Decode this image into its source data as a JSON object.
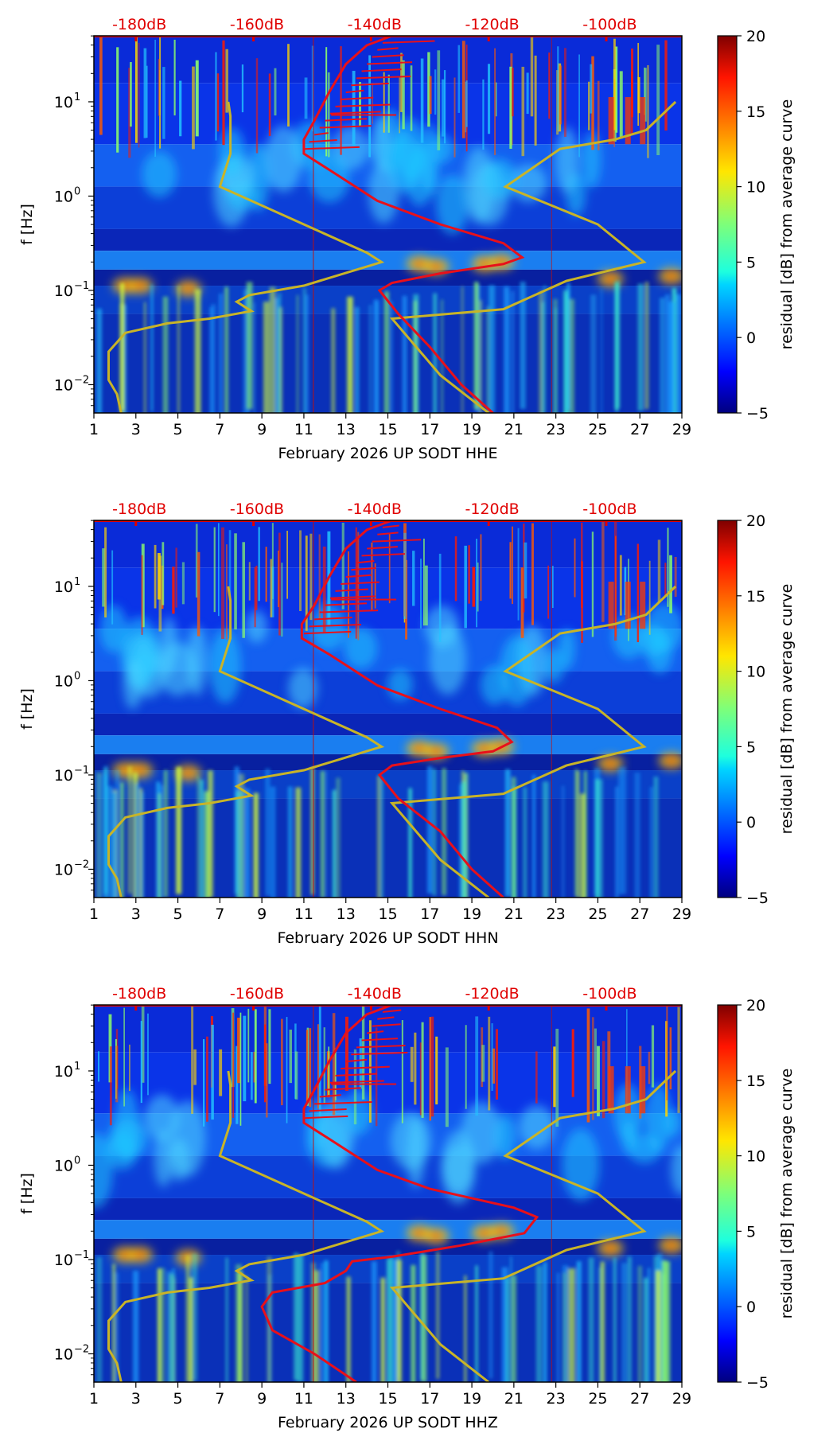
{
  "figure": {
    "description_type": "spectrogram residual panels",
    "colormap": "jet"
  },
  "chart_data": [
    {
      "type": "heatmap",
      "title": "",
      "xlabel": "February 2026 UP SODT  HHE",
      "ylabel": "f [Hz]",
      "xlim": [
        1,
        29
      ],
      "ylim_log10": [
        -2.3,
        1.7
      ],
      "x_ticks": [
        "1",
        "3",
        "5",
        "7",
        "9",
        "11",
        "13",
        "15",
        "17",
        "19",
        "21",
        "23",
        "25",
        "27",
        "29"
      ],
      "y_ticks": [
        {
          "exp": -2,
          "base": "10",
          "sup": "−2"
        },
        {
          "exp": -1,
          "base": "10",
          "sup": "−1"
        },
        {
          "exp": 0,
          "base": "10",
          "sup": "0"
        },
        {
          "exp": 1,
          "base": "10",
          "sup": "1"
        }
      ],
      "top_labels": [
        {
          "x": 4,
          "text": "-180dB"
        },
        {
          "x": 9.6,
          "text": "-160dB"
        },
        {
          "x": 15.2,
          "text": "-140dB"
        },
        {
          "x": 20.8,
          "text": "-120dB"
        },
        {
          "x": 26.4,
          "text": "-100dB"
        }
      ],
      "colorbar": {
        "label": "residual [dB] from average curve",
        "min": -5,
        "max": 20,
        "ticks": [
          "20",
          "15",
          "10",
          "5",
          "0",
          "−5"
        ]
      },
      "red_curve": [
        [
          20,
          -2.3
        ],
        [
          18.5,
          -2.0
        ],
        [
          17,
          -1.6
        ],
        [
          15.5,
          -1.25
        ],
        [
          14.6,
          -1.0
        ],
        [
          15.2,
          -0.92
        ],
        [
          17.5,
          -0.82
        ],
        [
          20.5,
          -0.72
        ],
        [
          21.4,
          -0.65
        ],
        [
          20.5,
          -0.5
        ],
        [
          17.5,
          -0.3
        ],
        [
          14.5,
          -0.05
        ],
        [
          12.2,
          0.28
        ],
        [
          11,
          0.45
        ],
        [
          11,
          0.6
        ],
        [
          11.5,
          0.8
        ],
        [
          12.2,
          1.1
        ],
        [
          13,
          1.4
        ],
        [
          14,
          1.6
        ],
        [
          15.2,
          1.7
        ]
      ],
      "yellow_curve": [
        [
          2.3,
          -2.3
        ],
        [
          2.1,
          -2.1
        ],
        [
          1.7,
          -1.95
        ],
        [
          1.7,
          -1.65
        ],
        [
          2.5,
          -1.45
        ],
        [
          4.5,
          -1.35
        ],
        [
          6.5,
          -1.3
        ],
        [
          8.5,
          -1.22
        ],
        [
          7.8,
          -1.12
        ],
        [
          8.4,
          -1.05
        ],
        [
          11,
          -0.95
        ],
        [
          14.7,
          -0.7
        ],
        [
          14,
          -0.6
        ],
        [
          11,
          -0.3
        ],
        [
          7,
          0.1
        ],
        [
          7.5,
          0.45
        ],
        [
          7.5,
          0.85
        ],
        [
          7.4,
          1.0
        ],
        [
          19.8,
          -2.3
        ],
        [
          17.5,
          -1.9
        ],
        [
          15.2,
          -1.3
        ],
        [
          20.5,
          -1.2
        ],
        [
          23.5,
          -0.9
        ],
        [
          27.2,
          -0.7
        ],
        [
          25,
          -0.3
        ],
        [
          20.6,
          0.1
        ],
        [
          23.2,
          0.5
        ],
        [
          25.8,
          0.6
        ],
        [
          27.3,
          0.7
        ],
        [
          28.7,
          1.0
        ]
      ]
    },
    {
      "type": "heatmap",
      "title": "",
      "xlabel": "February 2026 UP SODT  HHN",
      "ylabel": "f [Hz]",
      "xlim": [
        1,
        29
      ],
      "ylim_log10": [
        -2.3,
        1.7
      ],
      "x_ticks": [
        "1",
        "3",
        "5",
        "7",
        "9",
        "11",
        "13",
        "15",
        "17",
        "19",
        "21",
        "23",
        "25",
        "27",
        "29"
      ],
      "y_ticks": [
        {
          "exp": -2,
          "base": "10",
          "sup": "−2"
        },
        {
          "exp": -1,
          "base": "10",
          "sup": "−1"
        },
        {
          "exp": 0,
          "base": "10",
          "sup": "0"
        },
        {
          "exp": 1,
          "base": "10",
          "sup": "1"
        }
      ],
      "top_labels": [
        {
          "x": 4,
          "text": "-180dB"
        },
        {
          "x": 9.6,
          "text": "-160dB"
        },
        {
          "x": 15.2,
          "text": "-140dB"
        },
        {
          "x": 20.8,
          "text": "-120dB"
        },
        {
          "x": 26.4,
          "text": "-100dB"
        }
      ],
      "colorbar": {
        "label": "residual [dB] from average curve",
        "min": -5,
        "max": 20,
        "ticks": [
          "20",
          "15",
          "10",
          "5",
          "0",
          "−5"
        ]
      },
      "red_curve": [
        [
          20.5,
          -2.3
        ],
        [
          19,
          -2.0
        ],
        [
          17.5,
          -1.6
        ],
        [
          15.5,
          -1.25
        ],
        [
          14.6,
          -1.0
        ],
        [
          15.2,
          -0.9
        ],
        [
          17.5,
          -0.82
        ],
        [
          20,
          -0.75
        ],
        [
          20.9,
          -0.65
        ],
        [
          20.2,
          -0.5
        ],
        [
          17.5,
          -0.3
        ],
        [
          14.5,
          -0.05
        ],
        [
          12.2,
          0.28
        ],
        [
          10.9,
          0.45
        ],
        [
          10.9,
          0.6
        ],
        [
          11.5,
          0.8
        ],
        [
          12.2,
          1.1
        ],
        [
          13,
          1.4
        ],
        [
          14,
          1.6
        ],
        [
          15.2,
          1.7
        ]
      ],
      "yellow_curve": [
        [
          2.3,
          -2.3
        ],
        [
          2.1,
          -2.1
        ],
        [
          1.7,
          -1.95
        ],
        [
          1.7,
          -1.65
        ],
        [
          2.5,
          -1.45
        ],
        [
          4.5,
          -1.35
        ],
        [
          6.5,
          -1.3
        ],
        [
          8.5,
          -1.22
        ],
        [
          7.8,
          -1.12
        ],
        [
          8.4,
          -1.05
        ],
        [
          11,
          -0.95
        ],
        [
          14.7,
          -0.7
        ],
        [
          14,
          -0.6
        ],
        [
          11,
          -0.3
        ],
        [
          7,
          0.1
        ],
        [
          7.5,
          0.45
        ],
        [
          7.5,
          0.85
        ],
        [
          7.4,
          1.0
        ],
        [
          19.8,
          -2.3
        ],
        [
          17.5,
          -1.9
        ],
        [
          15.2,
          -1.3
        ],
        [
          20.5,
          -1.2
        ],
        [
          23.5,
          -0.9
        ],
        [
          27.2,
          -0.7
        ],
        [
          25,
          -0.3
        ],
        [
          20.6,
          0.1
        ],
        [
          23.2,
          0.5
        ],
        [
          25.8,
          0.6
        ],
        [
          27.3,
          0.7
        ],
        [
          28.7,
          1.0
        ]
      ]
    },
    {
      "type": "heatmap",
      "title": "",
      "xlabel": "February 2026 UP SODT  HHZ",
      "ylabel": "f [Hz]",
      "xlim": [
        1,
        29
      ],
      "ylim_log10": [
        -2.3,
        1.7
      ],
      "x_ticks": [
        "1",
        "3",
        "5",
        "7",
        "9",
        "11",
        "13",
        "15",
        "17",
        "19",
        "21",
        "23",
        "25",
        "27",
        "29"
      ],
      "y_ticks": [
        {
          "exp": -2,
          "base": "10",
          "sup": "−2"
        },
        {
          "exp": -1,
          "base": "10",
          "sup": "−1"
        },
        {
          "exp": 0,
          "base": "10",
          "sup": "0"
        },
        {
          "exp": 1,
          "base": "10",
          "sup": "1"
        }
      ],
      "top_labels": [
        {
          "x": 4,
          "text": "-180dB"
        },
        {
          "x": 9.6,
          "text": "-160dB"
        },
        {
          "x": 15.2,
          "text": "-140dB"
        },
        {
          "x": 20.8,
          "text": "-120dB"
        },
        {
          "x": 26.4,
          "text": "-100dB"
        }
      ],
      "colorbar": {
        "label": "residual [dB] from average curve",
        "min": -5,
        "max": 20,
        "ticks": [
          "20",
          "15",
          "10",
          "5",
          "0",
          "−5"
        ]
      },
      "red_curve": [
        [
          13.5,
          -2.3
        ],
        [
          11.5,
          -2.0
        ],
        [
          9.5,
          -1.75
        ],
        [
          9,
          -1.5
        ],
        [
          9.5,
          -1.35
        ],
        [
          12,
          -1.25
        ],
        [
          13,
          -1.12
        ],
        [
          13.3,
          -1.02
        ],
        [
          15.2,
          -0.97
        ],
        [
          18.5,
          -0.85
        ],
        [
          21.5,
          -0.72
        ],
        [
          22.1,
          -0.55
        ],
        [
          21,
          -0.45
        ],
        [
          17,
          -0.25
        ],
        [
          14.5,
          -0.05
        ],
        [
          12.2,
          0.28
        ],
        [
          11,
          0.45
        ],
        [
          11,
          0.6
        ],
        [
          11.5,
          0.8
        ],
        [
          12.2,
          1.1
        ],
        [
          13,
          1.4
        ],
        [
          14,
          1.6
        ],
        [
          15.2,
          1.7
        ]
      ],
      "yellow_curve": [
        [
          2.3,
          -2.3
        ],
        [
          2.1,
          -2.1
        ],
        [
          1.7,
          -1.95
        ],
        [
          1.7,
          -1.65
        ],
        [
          2.5,
          -1.45
        ],
        [
          4.5,
          -1.35
        ],
        [
          6.5,
          -1.3
        ],
        [
          8.5,
          -1.22
        ],
        [
          7.8,
          -1.12
        ],
        [
          8.4,
          -1.05
        ],
        [
          11,
          -0.95
        ],
        [
          14.7,
          -0.7
        ],
        [
          14,
          -0.6
        ],
        [
          11,
          -0.3
        ],
        [
          7,
          0.1
        ],
        [
          7.5,
          0.45
        ],
        [
          7.5,
          0.85
        ],
        [
          7.4,
          1.0
        ],
        [
          19.8,
          -2.3
        ],
        [
          17.5,
          -1.9
        ],
        [
          15.2,
          -1.3
        ],
        [
          20.5,
          -1.2
        ],
        [
          23.5,
          -0.9
        ],
        [
          27.2,
          -0.7
        ],
        [
          25,
          -0.3
        ],
        [
          20.6,
          0.1
        ],
        [
          23.2,
          0.5
        ],
        [
          25.8,
          0.6
        ],
        [
          27.3,
          0.7
        ],
        [
          28.7,
          1.0
        ]
      ]
    }
  ],
  "colors": {
    "red_curve": "#e8101a",
    "yellow_curve": "#c8b428",
    "db_label": "#e00000"
  }
}
